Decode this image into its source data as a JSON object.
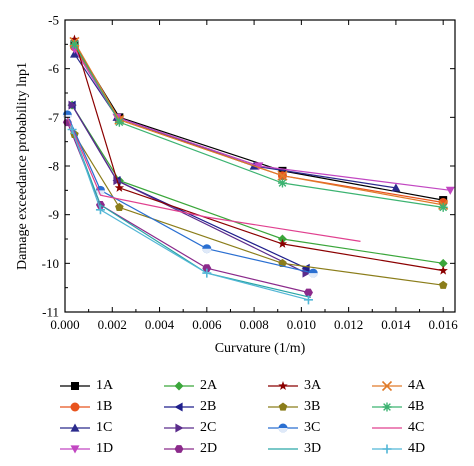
{
  "chart_data": {
    "type": "line",
    "title": "",
    "xlabel": "Curvature (1/m)",
    "ylabel": "Damage exceedance probability lnp1",
    "xlim": [
      0,
      0.0165
    ],
    "ylim": [
      -11,
      -5
    ],
    "xticks": [
      0.0,
      0.002,
      0.004,
      0.006,
      0.008,
      0.01,
      0.012,
      0.014,
      0.016
    ],
    "xtick_labels": [
      "0.000",
      "0.002",
      "0.004",
      "0.006",
      "0.008",
      "0.010",
      "0.012",
      "0.014",
      "0.016"
    ],
    "yticks": [
      -11,
      -10,
      -9,
      -8,
      -7,
      -6,
      -5
    ],
    "ytick_labels": [
      "-11",
      "-10",
      "-9",
      "-8",
      "-7",
      "-6",
      "-5"
    ],
    "grid": false,
    "legend_position": "bottom",
    "series": [
      {
        "name": "1A",
        "color": "#000000",
        "marker": "square",
        "x": [
          0.0004,
          0.0023,
          0.0092,
          0.016
        ],
        "y": [
          -5.5,
          -7.0,
          -8.1,
          -8.7
        ]
      },
      {
        "name": "1B",
        "color": "#e8541e",
        "marker": "circle",
        "x": [
          0.0004,
          0.0023,
          0.0092,
          0.016
        ],
        "y": [
          -5.55,
          -7.05,
          -8.2,
          -8.75
        ]
      },
      {
        "name": "1C",
        "color": "#2b2b8c",
        "marker": "triangle-up",
        "x": [
          0.0004,
          0.0022,
          0.008,
          0.014
        ],
        "y": [
          -5.7,
          -7.0,
          -8.0,
          -8.45
        ]
      },
      {
        "name": "1D",
        "color": "#c247c2",
        "marker": "triangle-down",
        "x": [
          0.0004,
          0.0022,
          0.0082,
          0.0163
        ],
        "y": [
          -5.6,
          -7.0,
          -8.0,
          -8.5
        ]
      },
      {
        "name": "2A",
        "color": "#3aa63a",
        "marker": "diamond",
        "x": [
          0.0003,
          0.0023,
          0.0092,
          0.016
        ],
        "y": [
          -6.75,
          -8.3,
          -9.5,
          -10.0
        ]
      },
      {
        "name": "2B",
        "color": "#1f1f8c",
        "marker": "triangle-left",
        "x": [
          0.0003,
          0.0022,
          0.0102
        ],
        "y": [
          -6.75,
          -8.3,
          -10.1
        ]
      },
      {
        "name": "2C",
        "color": "#5b2c8c",
        "marker": "triangle-right",
        "x": [
          0.0003,
          0.0022,
          0.0102
        ],
        "y": [
          -6.75,
          -8.3,
          -10.2
        ]
      },
      {
        "name": "2D",
        "color": "#8b2a8b",
        "marker": "hexagon",
        "x": [
          0.0001,
          0.0015,
          0.006,
          0.0103
        ],
        "y": [
          -7.1,
          -8.8,
          -10.1,
          -10.6
        ]
      },
      {
        "name": "3A",
        "color": "#8b0000",
        "marker": "star",
        "x": [
          0.0004,
          0.0023,
          0.0092,
          0.016
        ],
        "y": [
          -5.4,
          -8.45,
          -9.6,
          -10.15
        ]
      },
      {
        "name": "3B",
        "color": "#8b7d1a",
        "marker": "pentagon",
        "x": [
          0.0004,
          0.0023,
          0.0092,
          0.016
        ],
        "y": [
          -7.35,
          -8.85,
          -10.0,
          -10.45
        ]
      },
      {
        "name": "3C",
        "color": "#2a6fd1",
        "marker": "circle-half",
        "x": [
          0.0001,
          0.0015,
          0.006,
          0.0105
        ],
        "y": [
          -6.95,
          -8.5,
          -9.7,
          -10.2
        ]
      },
      {
        "name": "3D",
        "color": "#2aa6a6",
        "marker": "none",
        "x": [
          0.0001,
          0.0015,
          0.006,
          0.0104
        ],
        "y": [
          -7.0,
          -8.8,
          -10.2,
          -10.7
        ]
      },
      {
        "name": "4A",
        "color": "#e07b2a",
        "marker": "x",
        "x": [
          0.0004,
          0.0023,
          0.0092,
          0.016
        ],
        "y": [
          -5.45,
          -7.05,
          -8.2,
          -8.8
        ]
      },
      {
        "name": "4B",
        "color": "#3cb371",
        "marker": "asterisk",
        "x": [
          0.0004,
          0.0023,
          0.0092,
          0.016
        ],
        "y": [
          -5.5,
          -7.1,
          -8.35,
          -8.85
        ]
      },
      {
        "name": "4C",
        "color": "#e0408f",
        "marker": "none",
        "x": [
          0.0001,
          0.0015,
          0.006,
          0.0125
        ],
        "y": [
          -7.0,
          -8.6,
          -9.05,
          -9.55
        ]
      },
      {
        "name": "4D",
        "color": "#52b6d6",
        "marker": "plus",
        "x": [
          0.0003,
          0.0015,
          0.006,
          0.0103
        ],
        "y": [
          -7.25,
          -8.9,
          -10.2,
          -10.75
        ]
      }
    ]
  }
}
